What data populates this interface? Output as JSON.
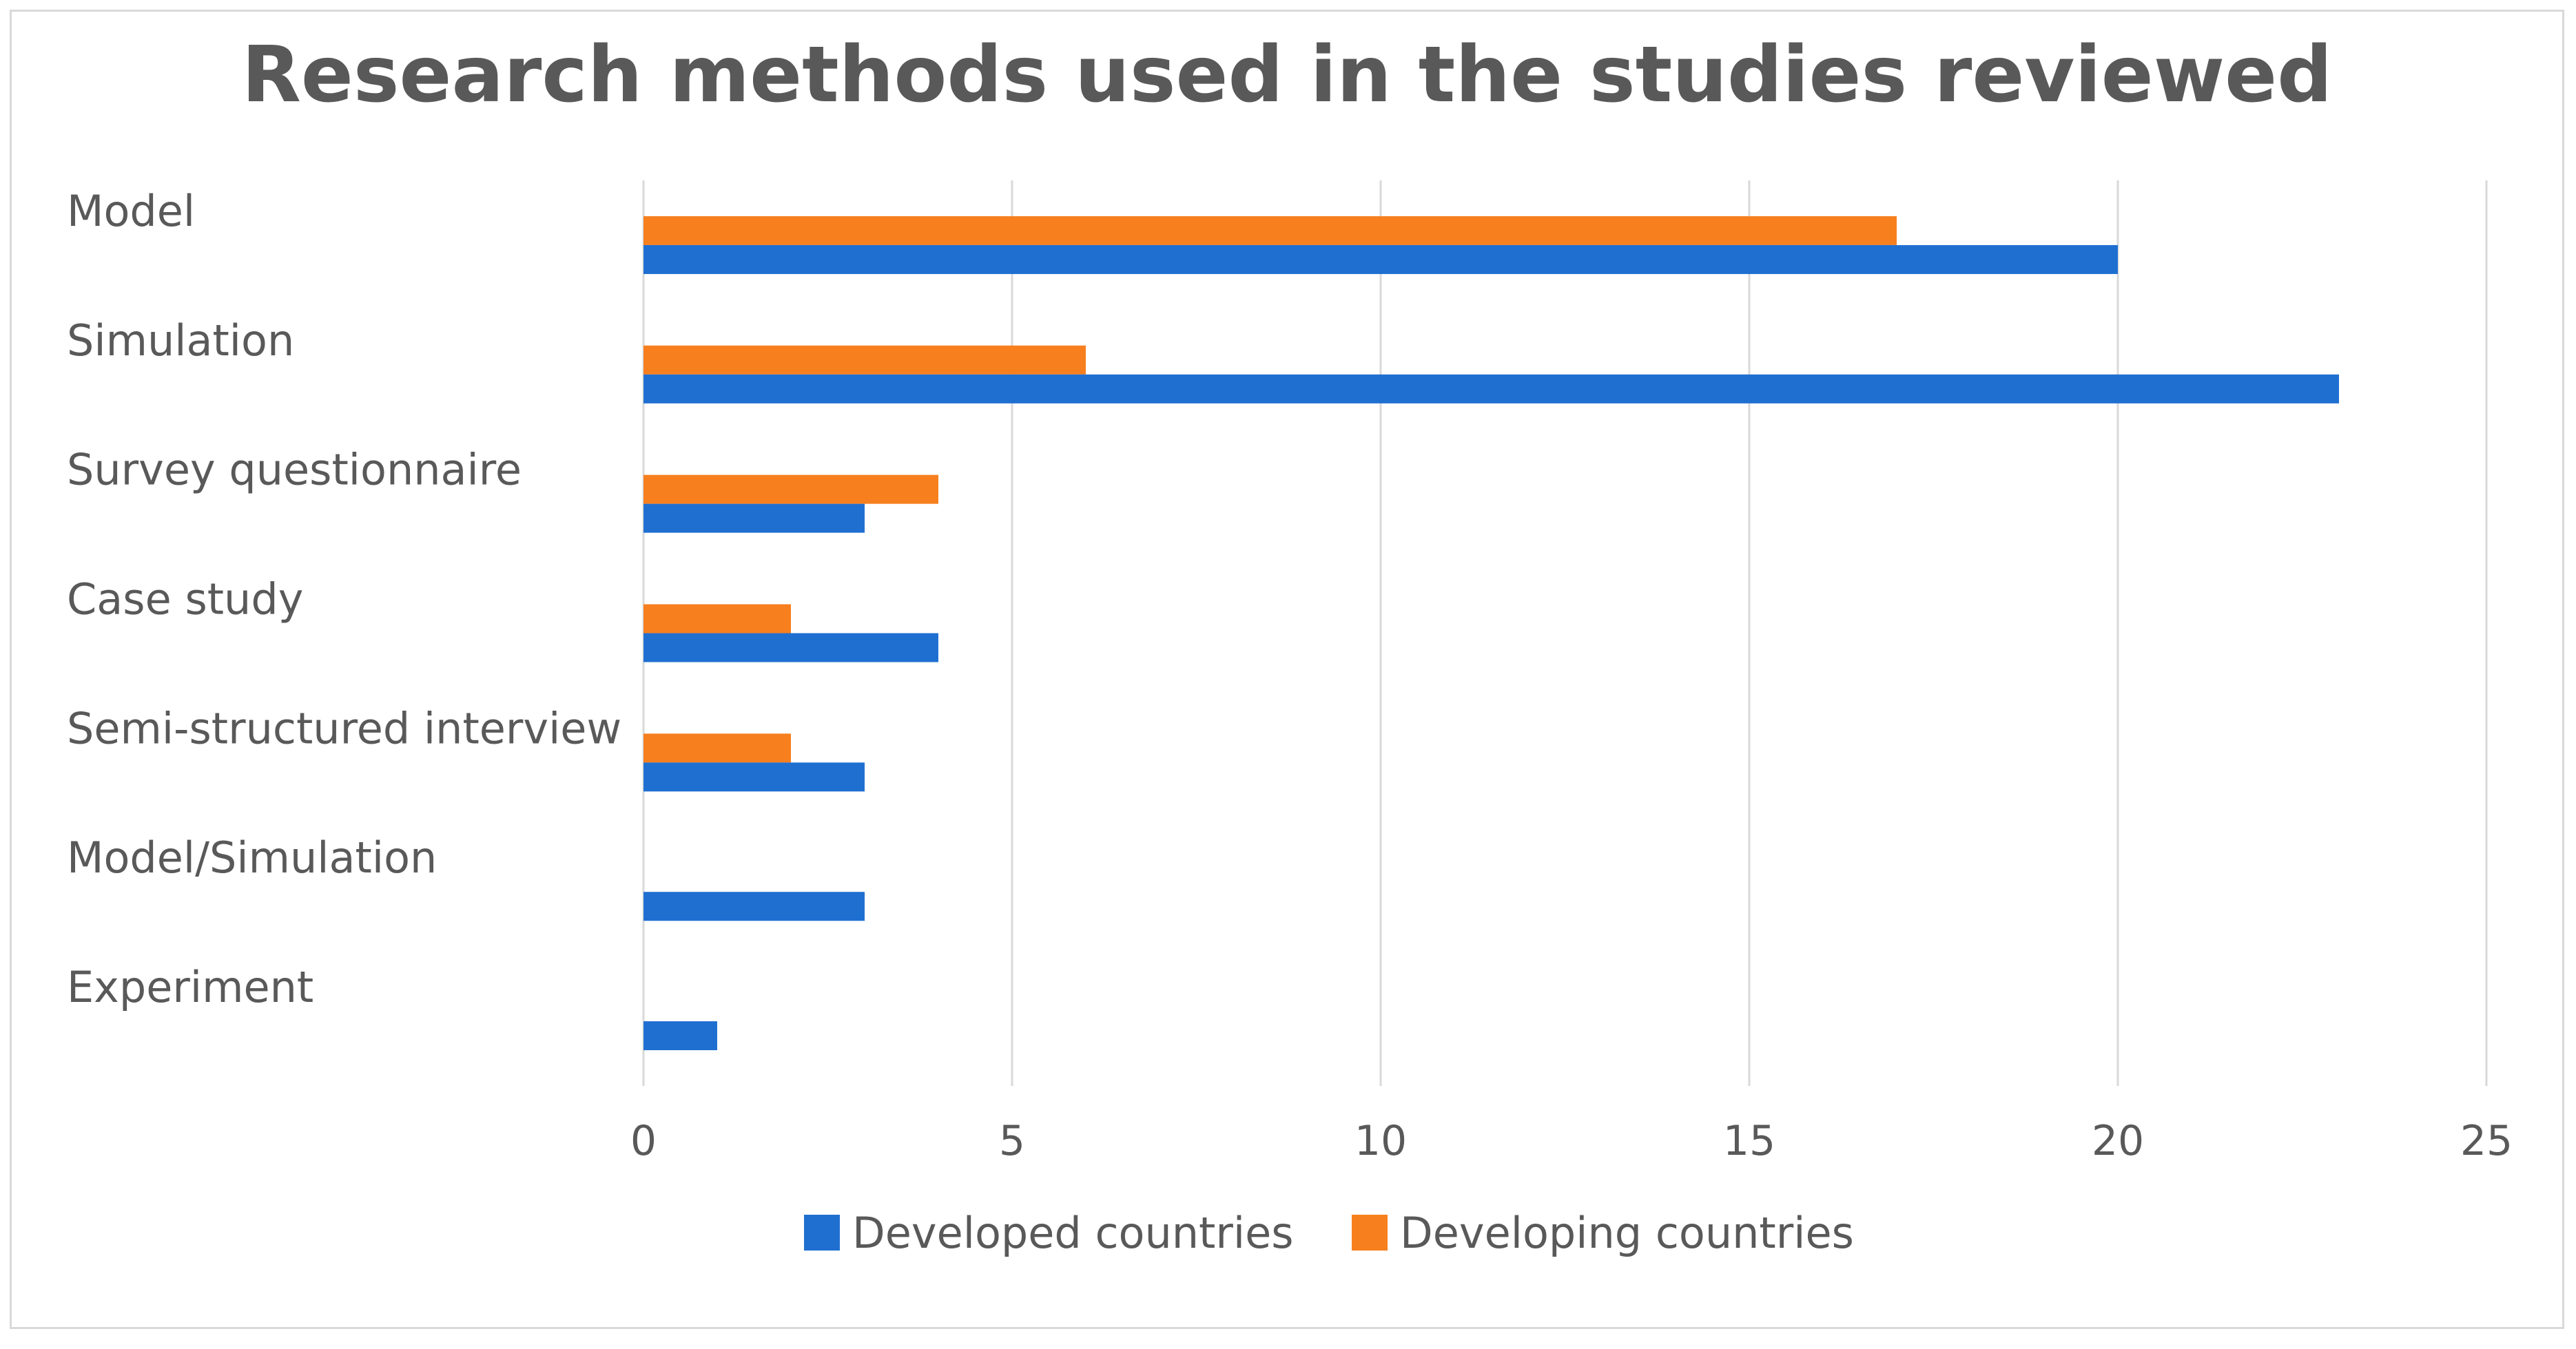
{
  "chart_data": {
    "type": "bar",
    "orientation": "horizontal",
    "title": "Research methods used in the studies reviewed",
    "categories": [
      "Model",
      "Simulation",
      "Survey questionnaire",
      "Case study",
      "Semi-structured interview",
      "Model/Simulation",
      "Experiment"
    ],
    "series": [
      {
        "name": "Developed countries",
        "color": "#1f6fd1",
        "values": [
          20,
          23,
          3,
          4,
          3,
          3,
          1
        ]
      },
      {
        "name": "Developing countries",
        "color": "#f77f1d",
        "values": [
          17,
          6,
          4,
          2,
          2,
          0,
          0
        ]
      }
    ],
    "xlim": [
      0,
      25
    ],
    "xticks": [
      "0",
      "5",
      "10",
      "15",
      "20",
      "25"
    ],
    "xlabel": "",
    "ylabel": "",
    "grid": "vertical",
    "legend_position": "bottom"
  }
}
